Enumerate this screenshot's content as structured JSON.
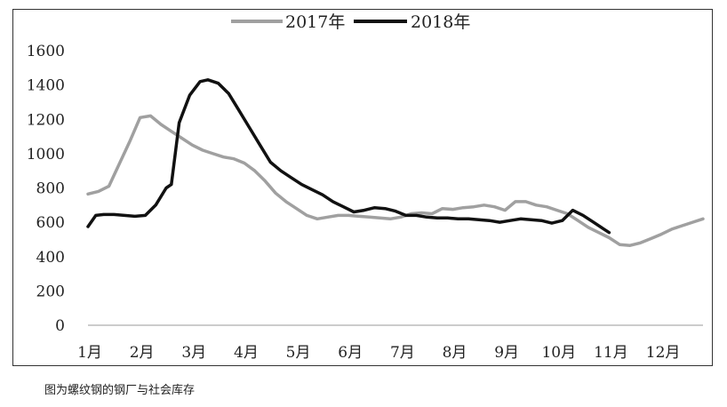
{
  "chart_data": {
    "type": "line",
    "title": "",
    "xlabel": "",
    "ylabel": "",
    "ylim": [
      0,
      1600
    ],
    "yticks": [
      0,
      200,
      400,
      600,
      800,
      1000,
      1200,
      1400,
      1600
    ],
    "xlim": [
      1,
      12.8
    ],
    "month_labels": [
      "1月",
      "2月",
      "3月",
      "4月",
      "5月",
      "6月",
      "7月",
      "8月",
      "9月",
      "10月",
      "11月",
      "12月"
    ],
    "legend_position": "top",
    "grid": false,
    "series": [
      {
        "name": "2017年",
        "color": "#a0a0a0",
        "x": [
          1.0,
          1.2,
          1.4,
          1.6,
          1.8,
          2.0,
          2.2,
          2.4,
          2.6,
          2.8,
          3.0,
          3.2,
          3.4,
          3.6,
          3.8,
          4.0,
          4.2,
          4.4,
          4.6,
          4.8,
          5.0,
          5.2,
          5.4,
          5.6,
          5.8,
          6.0,
          6.2,
          6.4,
          6.6,
          6.8,
          7.0,
          7.2,
          7.4,
          7.6,
          7.8,
          8.0,
          8.2,
          8.4,
          8.6,
          8.8,
          9.0,
          9.2,
          9.4,
          9.6,
          9.8,
          10.0,
          10.2,
          10.4,
          10.6,
          10.8,
          11.0,
          11.2,
          11.4,
          11.6,
          11.8,
          12.0,
          12.2,
          12.4,
          12.6,
          12.8
        ],
        "values": [
          765,
          780,
          810,
          940,
          1070,
          1210,
          1220,
          1170,
          1130,
          1090,
          1050,
          1020,
          1000,
          980,
          970,
          945,
          900,
          840,
          770,
          720,
          680,
          640,
          620,
          630,
          640,
          640,
          635,
          630,
          625,
          620,
          630,
          650,
          655,
          650,
          680,
          675,
          685,
          690,
          700,
          690,
          670,
          720,
          720,
          700,
          690,
          670,
          650,
          610,
          570,
          540,
          510,
          470,
          465,
          480,
          505,
          530,
          560,
          580,
          600,
          620
        ]
      },
      {
        "name": "2018年",
        "color": "#111111",
        "x": [
          1.0,
          1.15,
          1.3,
          1.5,
          1.7,
          1.9,
          2.1,
          2.3,
          2.5,
          2.6,
          2.75,
          2.95,
          3.15,
          3.3,
          3.5,
          3.7,
          3.9,
          4.1,
          4.3,
          4.5,
          4.7,
          4.9,
          5.1,
          5.3,
          5.5,
          5.7,
          5.9,
          6.1,
          6.3,
          6.5,
          6.7,
          6.9,
          7.1,
          7.3,
          7.5,
          7.7,
          7.9,
          8.1,
          8.3,
          8.5,
          8.7,
          8.9,
          9.1,
          9.3,
          9.5,
          9.7,
          9.9,
          10.1,
          10.3,
          10.5,
          10.7,
          10.9,
          11.0
        ],
        "values": [
          575,
          640,
          645,
          645,
          640,
          635,
          640,
          700,
          800,
          820,
          1180,
          1340,
          1420,
          1430,
          1410,
          1350,
          1250,
          1150,
          1050,
          950,
          900,
          860,
          820,
          790,
          760,
          720,
          690,
          660,
          670,
          685,
          680,
          665,
          640,
          640,
          630,
          625,
          625,
          620,
          620,
          615,
          610,
          600,
          610,
          620,
          615,
          610,
          595,
          610,
          670,
          640,
          600,
          560,
          540
        ]
      }
    ]
  },
  "legend": {
    "items": [
      {
        "label": "2017年",
        "color": "#a0a0a0"
      },
      {
        "label": "2018年",
        "color": "#111111"
      }
    ]
  },
  "caption": "图为螺纹钢的钢厂与社会库存"
}
